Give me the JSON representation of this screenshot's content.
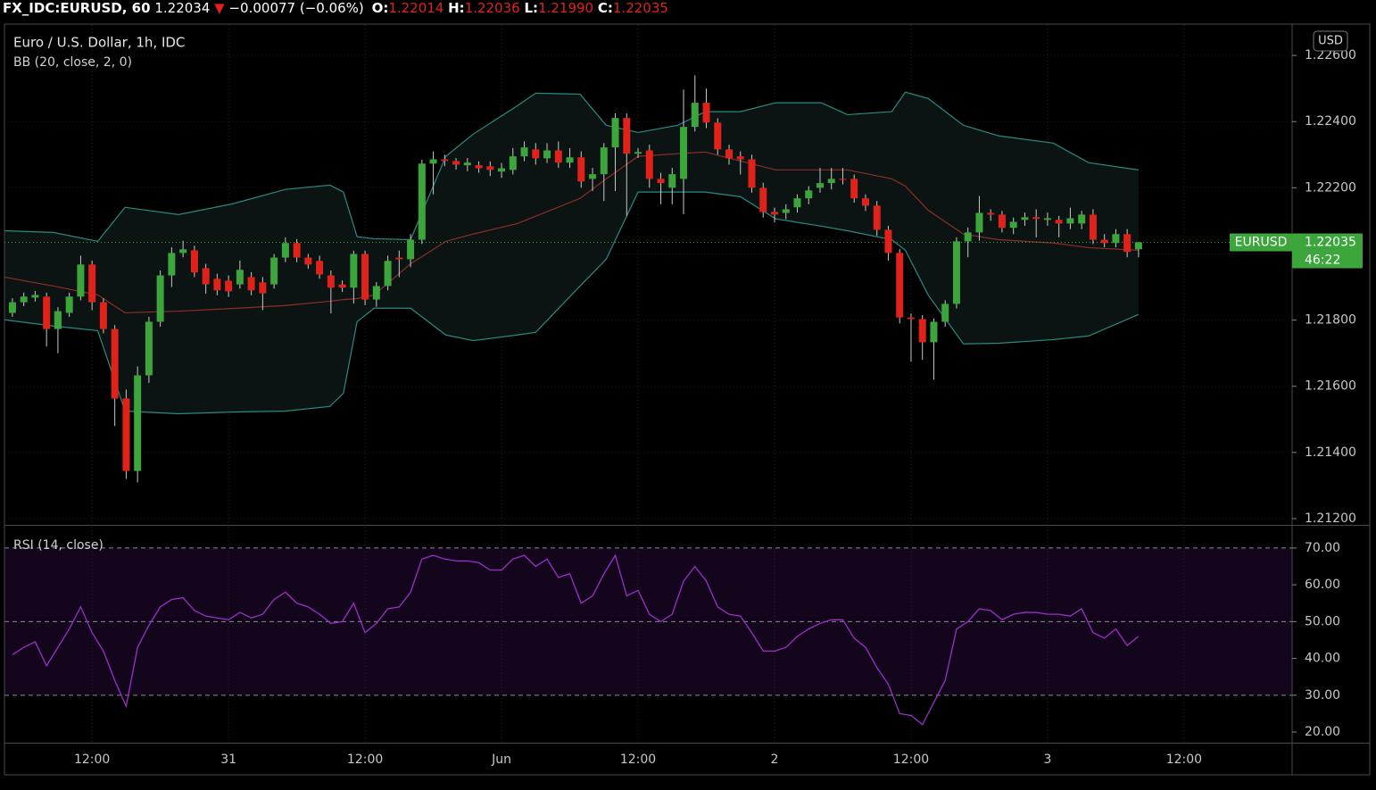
{
  "header": {
    "symbol": "FX_IDC:EURUSD, 60",
    "last": "1.22034",
    "direction": "▼",
    "change": "−0.00077 (−0.06%)",
    "ohlc": [
      {
        "label": "O:",
        "value": "1.22014"
      },
      {
        "label": "H:",
        "value": "1.22036"
      },
      {
        "label": "L:",
        "value": "1.21990"
      },
      {
        "label": "C:",
        "value": "1.22035"
      }
    ]
  },
  "chart_data": [
    {
      "type": "candlestick",
      "title": "Euro / U.S. Dollar, 1h, IDC",
      "indicator": "BB (20, close, 2, 0)",
      "currency": "USD",
      "up_color": "#3ca63c",
      "down_color": "#e0221b",
      "wick_color": "#c8c8c8",
      "grid": true,
      "x": [
        0,
        1,
        2,
        3,
        4,
        5,
        6,
        7,
        8,
        9,
        10,
        11,
        12,
        13,
        14,
        15,
        16,
        17,
        18,
        19,
        20,
        21,
        22,
        23,
        24,
        25,
        26,
        27,
        28,
        29,
        30,
        31,
        32,
        33,
        34,
        35,
        36,
        37,
        38,
        39,
        40,
        41,
        42,
        43,
        44,
        45,
        46,
        47,
        48,
        49,
        50,
        51,
        52,
        53,
        54,
        55,
        56,
        57,
        58,
        59,
        60,
        61,
        62,
        63,
        64,
        65,
        66,
        67,
        68,
        69,
        70,
        71,
        72,
        73,
        74,
        75,
        76,
        77,
        78,
        79,
        80,
        81,
        82,
        83,
        84,
        85,
        86,
        87,
        88,
        89,
        90,
        91,
        92,
        93,
        94,
        95,
        96,
        97,
        98,
        99
      ],
      "open": [
        1.21822,
        1.21854,
        1.21868,
        1.21871,
        1.21773,
        1.21822,
        1.21871,
        1.21968,
        1.21854,
        1.21773,
        1.21563,
        1.21344,
        1.21633,
        1.21795,
        1.21935,
        1.22003,
        1.22011,
        1.21957,
        1.21925,
        1.21919,
        1.21908,
        1.2193,
        1.21914,
        1.21908,
        1.21989,
        1.22033,
        1.21989,
        1.21979,
        1.21935,
        1.21908,
        1.21898,
        1.22,
        1.21862,
        1.21903,
        1.21989,
        1.21984,
        1.22043,
        1.22273,
        1.22286,
        1.22281,
        1.22268,
        1.22268,
        1.22265,
        1.22249,
        1.22254,
        1.22295,
        1.22316,
        1.22289,
        1.22313,
        1.22276,
        1.22292,
        1.22227,
        1.22241,
        1.22322,
        1.22411,
        1.22303,
        1.22313,
        1.22227,
        1.222,
        1.22227,
        1.22384,
        1.22457,
        1.22397,
        1.22316,
        1.22295,
        1.22286,
        1.222,
        1.22127,
        1.22124,
        1.22141,
        1.22168,
        1.222,
        1.22214,
        1.22227,
        1.22227,
        1.22168,
        1.22146,
        1.22073,
        1.22003,
        1.21808,
        1.21803,
        1.21733,
        1.21795,
        1.21849,
        1.22038,
        1.22065,
        1.22124,
        1.22119,
        1.22079,
        1.22103,
        1.22111,
        1.22103,
        1.22103,
        1.22092,
        1.22092,
        1.22119,
        1.22043,
        1.22033,
        1.2206,
        1.22014
      ],
      "high": [
        1.21866,
        1.21883,
        1.21888,
        1.21883,
        1.21839,
        1.21883,
        1.21995,
        1.2198,
        1.21866,
        1.21785,
        1.2159,
        1.2166,
        1.2181,
        1.2195,
        1.2202,
        1.2204,
        1.22025,
        1.2197,
        1.2194,
        1.21935,
        1.2198,
        1.21945,
        1.2193,
        1.22,
        1.2205,
        1.22045,
        1.22,
        1.21995,
        1.2195,
        1.2192,
        1.2201,
        1.2201,
        1.21915,
        1.21995,
        1.2201,
        1.2206,
        1.22285,
        1.2231,
        1.223,
        1.2229,
        1.2229,
        1.2228,
        1.2228,
        1.22275,
        1.2232,
        1.2234,
        1.22335,
        1.22335,
        1.2234,
        1.2232,
        1.2231,
        1.2226,
        1.22335,
        1.22425,
        1.22425,
        1.2232,
        1.2233,
        1.22245,
        1.2226,
        1.22497,
        1.2254,
        1.225,
        1.2241,
        1.2233,
        1.2231,
        1.223,
        1.22215,
        1.2214,
        1.2215,
        1.2218,
        1.22205,
        1.2226,
        1.2226,
        1.2226,
        1.2224,
        1.2218,
        1.2216,
        1.22085,
        1.22015,
        1.2182,
        1.21815,
        1.21805,
        1.2186,
        1.2205,
        1.2208,
        1.22175,
        1.22135,
        1.2213,
        1.2211,
        1.22125,
        1.22135,
        1.22125,
        1.22115,
        1.2214,
        1.2213,
        1.22135,
        1.2206,
        1.22075,
        1.22075,
        1.22036
      ],
      "low": [
        1.2181,
        1.21842,
        1.21856,
        1.2172,
        1.217,
        1.2181,
        1.2186,
        1.2183,
        1.2176,
        1.2148,
        1.2132,
        1.21309,
        1.2161,
        1.2178,
        1.219,
        1.2199,
        1.2193,
        1.2188,
        1.21875,
        1.2187,
        1.21895,
        1.21875,
        1.2183,
        1.21895,
        1.21975,
        1.21975,
        1.21955,
        1.21925,
        1.2182,
        1.21885,
        1.2185,
        1.21845,
        1.2184,
        1.2189,
        1.2193,
        1.2196,
        1.2203,
        1.2218,
        1.22265,
        1.22255,
        1.2225,
        1.22245,
        1.22235,
        1.2223,
        1.2224,
        1.2228,
        1.2227,
        1.22275,
        1.2226,
        1.2226,
        1.222,
        1.2219,
        1.2216,
        1.2219,
        1.22115,
        1.2229,
        1.222,
        1.2215,
        1.2215,
        1.2212,
        1.2237,
        1.2238,
        1.223,
        1.2227,
        1.2224,
        1.22185,
        1.2211,
        1.22095,
        1.22105,
        1.22125,
        1.2215,
        1.22185,
        1.22195,
        1.2221,
        1.22155,
        1.2213,
        1.22055,
        1.2198,
        1.2179,
        1.21674,
        1.2168,
        1.2162,
        1.2178,
        1.21835,
        1.2199,
        1.2204,
        1.221,
        1.22065,
        1.2206,
        1.22085,
        1.2205,
        1.22085,
        1.2205,
        1.22075,
        1.22075,
        1.2203,
        1.2202,
        1.2202,
        1.2199,
        1.2199
      ],
      "close": [
        1.21854,
        1.21871,
        1.21876,
        1.21773,
        1.21827,
        1.21871,
        1.21968,
        1.21854,
        1.21773,
        1.21563,
        1.21344,
        1.21633,
        1.21795,
        1.21935,
        1.22003,
        1.22014,
        1.21944,
        1.21908,
        1.2189,
        1.21887,
        1.21952,
        1.2189,
        1.21881,
        1.21989,
        1.22033,
        1.21989,
        1.21968,
        1.21938,
        1.21898,
        1.21898,
        1.22,
        1.21862,
        1.21903,
        1.21979,
        1.21984,
        1.22043,
        1.22273,
        1.22286,
        1.22281,
        1.2227,
        1.22276,
        1.22259,
        1.22254,
        1.22259,
        1.22295,
        1.22322,
        1.22289,
        1.22313,
        1.22276,
        1.22292,
        1.22219,
        1.22241,
        1.22322,
        1.22411,
        1.22303,
        1.22308,
        1.22227,
        1.22214,
        1.22241,
        1.22384,
        1.22457,
        1.22397,
        1.22316,
        1.22289,
        1.22286,
        1.222,
        1.22127,
        1.22119,
        1.22135,
        1.22168,
        1.22192,
        1.22214,
        1.22227,
        1.22224,
        1.22168,
        1.22146,
        1.22073,
        1.22003,
        1.21808,
        1.21803,
        1.21733,
        1.21795,
        1.21849,
        1.22038,
        1.22065,
        1.22124,
        1.22119,
        1.22079,
        1.22097,
        1.22111,
        1.22106,
        1.22108,
        1.22092,
        1.22108,
        1.22119,
        1.22043,
        1.22033,
        1.2206,
        1.22006,
        1.22035
      ],
      "bands": {
        "line_color": "#2a8a83",
        "middle_color": "#8c2e28",
        "fill": "#0b1412",
        "x": [
          -0.7,
          3.6,
          7.5,
          9.9,
          14.6,
          19.3,
          24,
          27.9,
          29.1,
          30.3,
          31.8,
          35,
          38.1,
          40.5,
          44.4,
          46,
          49.9,
          52.2,
          55,
          58.5,
          60.9,
          64,
          67.1,
          71.1,
          73.4,
          77.3,
          78.5,
          80.5,
          83.6,
          86.7,
          91.5,
          94.6,
          99
        ],
        "upper": [
          1.2207,
          1.22065,
          1.22038,
          1.22141,
          1.22119,
          1.22151,
          1.22195,
          1.22208,
          1.22187,
          1.22052,
          1.22046,
          1.22043,
          1.22295,
          1.22362,
          1.22448,
          1.22486,
          1.22483,
          1.22389,
          1.22367,
          1.22389,
          1.2243,
          1.2243,
          1.22457,
          1.22457,
          1.22421,
          1.2243,
          1.22489,
          1.2247,
          1.22389,
          1.22357,
          1.22335,
          1.22276,
          1.22254
        ],
        "middle": [
          1.2193,
          1.21903,
          1.21876,
          1.21822,
          1.21827,
          1.21835,
          1.21844,
          1.21857,
          1.21862,
          1.21865,
          1.21876,
          1.2197,
          1.22038,
          1.2206,
          1.22092,
          1.22114,
          1.22168,
          1.22227,
          1.22295,
          1.22303,
          1.22308,
          1.22281,
          1.22254,
          1.22254,
          1.22254,
          1.22227,
          1.22205,
          1.22132,
          1.2206,
          1.22043,
          1.22033,
          1.22019,
          1.22011
        ],
        "lower": [
          1.21801,
          1.21782,
          1.21768,
          1.21525,
          1.21517,
          1.21522,
          1.21525,
          1.21539,
          1.21579,
          1.21795,
          1.21836,
          1.21836,
          1.21755,
          1.21738,
          1.21755,
          1.21763,
          1.21903,
          1.21984,
          1.22187,
          1.22187,
          1.22187,
          1.22173,
          1.22106,
          1.22084,
          1.2207,
          1.22043,
          1.22011,
          1.21876,
          1.21728,
          1.2173,
          1.21741,
          1.21752,
          1.21817
        ]
      },
      "last_price": {
        "name": "EURUSD",
        "value": 1.22035,
        "countdown": "46:22",
        "color": "#3ca63c"
      },
      "xlim": [
        -0.7,
        112.5
      ],
      "xticks": [
        {
          "value": 7,
          "label": "12:00"
        },
        {
          "value": 19,
          "label": "31"
        },
        {
          "value": 31,
          "label": "12:00"
        },
        {
          "value": 43,
          "label": "Jun"
        },
        {
          "value": 55,
          "label": "12:00"
        },
        {
          "value": 67,
          "label": "2"
        },
        {
          "value": 79,
          "label": "12:00"
        },
        {
          "value": 91,
          "label": "3"
        },
        {
          "value": 103,
          "label": "12:00"
        }
      ],
      "ylim": [
        1.21181,
        1.22692
      ],
      "yticks": [
        {
          "value": 1.212,
          "label": "1.21200"
        },
        {
          "value": 1.214,
          "label": "1.21400"
        },
        {
          "value": 1.216,
          "label": "1.21600"
        },
        {
          "value": 1.218,
          "label": "1.21800"
        },
        {
          "value": 1.22,
          "label": "1.22000"
        },
        {
          "value": 1.222,
          "label": "1.22200"
        },
        {
          "value": 1.224,
          "label": "1.22400"
        },
        {
          "value": 1.226,
          "label": "1.22600"
        }
      ]
    },
    {
      "type": "line",
      "title": "RSI (14, close)",
      "color": "#9b2fc7",
      "band_fill": "#13061c",
      "levels": [
        70,
        50,
        30
      ],
      "values": [
        41,
        43,
        44.5,
        38,
        43,
        48,
        54,
        47,
        42,
        34,
        27,
        43,
        49,
        54,
        56,
        56.5,
        53,
        51.5,
        51,
        50.5,
        52.5,
        51,
        52,
        56,
        58,
        55,
        54,
        52,
        49.5,
        50,
        55,
        47,
        49.5,
        53.5,
        54,
        58,
        67,
        68,
        67,
        66.5,
        66.5,
        66,
        64,
        64,
        67,
        68,
        65,
        67,
        62,
        63,
        55,
        57,
        63,
        68,
        57,
        58.5,
        52,
        50,
        52,
        61,
        65,
        61,
        54,
        52,
        51.5,
        47,
        42,
        42,
        43,
        46,
        48,
        49.5,
        50.5,
        50.5,
        45.5,
        43,
        37.5,
        33,
        25,
        24.5,
        22,
        28,
        34,
        48,
        50,
        53.5,
        53,
        50.5,
        52,
        52.5,
        52.5,
        52,
        52,
        51.5,
        53.5,
        47,
        45.5,
        48,
        43.5,
        46
      ],
      "ylim": [
        17.1,
        75.8
      ],
      "yticks": [
        {
          "value": 20,
          "label": "20.00"
        },
        {
          "value": 30,
          "label": "30.00"
        },
        {
          "value": 40,
          "label": "40.00"
        },
        {
          "value": 50,
          "label": "50.00"
        },
        {
          "value": 60,
          "label": "60.00"
        },
        {
          "value": 70,
          "label": "70.00"
        }
      ]
    }
  ]
}
